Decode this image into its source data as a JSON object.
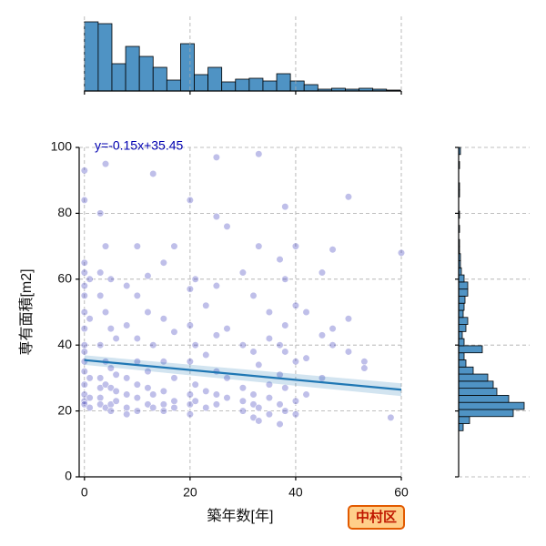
{
  "chart_data": [
    {
      "type": "scatter",
      "xlabel": "築年数[年]",
      "ylabel": "専有面積[m2]",
      "annotation": "y=-0.15x+35.45",
      "badge": "中村区",
      "color": "#1a1ab0",
      "grid": true,
      "xlim": [
        -1,
        60
      ],
      "ylim": [
        0,
        100
      ],
      "xticks": [
        0,
        20,
        40,
        60
      ],
      "yticks": [
        0,
        20,
        40,
        60,
        80,
        100
      ],
      "x": [
        0,
        0,
        0,
        0,
        0,
        0,
        0,
        0,
        0,
        0,
        0,
        0,
        0,
        0,
        0,
        0,
        1,
        1,
        1,
        1,
        1,
        3,
        3,
        3,
        3,
        3,
        3,
        3,
        3,
        4,
        4,
        4,
        4,
        4,
        4,
        5,
        5,
        5,
        5,
        5,
        5,
        6,
        6,
        6,
        6,
        8,
        8,
        8,
        8,
        8,
        8,
        10,
        10,
        10,
        10,
        10,
        10,
        10,
        12,
        12,
        12,
        12,
        12,
        13,
        13,
        13,
        13,
        15,
        15,
        15,
        15,
        15,
        15,
        17,
        17,
        17,
        17,
        17,
        20,
        20,
        20,
        20,
        20,
        20,
        20,
        21,
        21,
        21,
        21,
        23,
        23,
        23,
        23,
        25,
        25,
        25,
        25,
        25,
        25,
        25,
        27,
        27,
        27,
        27,
        30,
        30,
        30,
        30,
        30,
        32,
        32,
        32,
        32,
        32,
        33,
        33,
        33,
        33,
        33,
        35,
        35,
        35,
        35,
        35,
        37,
        37,
        37,
        37,
        37,
        38,
        38,
        38,
        38,
        38,
        38,
        40,
        40,
        40,
        40,
        40,
        42,
        42,
        42,
        45,
        45,
        45,
        47,
        47,
        47,
        50,
        50,
        50,
        53,
        53,
        58,
        60
      ],
      "values": [
        93,
        84,
        65,
        62,
        58,
        55,
        50,
        45,
        40,
        38,
        35,
        32,
        28,
        25,
        23,
        22,
        60,
        48,
        30,
        24,
        21,
        80,
        62,
        55,
        40,
        30,
        27,
        24,
        22,
        95,
        70,
        50,
        35,
        28,
        21,
        60,
        45,
        33,
        27,
        22,
        20,
        42,
        31,
        26,
        23,
        58,
        46,
        30,
        25,
        21,
        19,
        70,
        55,
        42,
        35,
        28,
        24,
        20,
        61,
        50,
        32,
        27,
        22,
        92,
        40,
        25,
        21,
        65,
        48,
        35,
        26,
        22,
        20,
        70,
        44,
        30,
        23,
        21,
        84,
        57,
        46,
        35,
        25,
        22,
        19,
        60,
        40,
        28,
        23,
        52,
        37,
        26,
        21,
        97,
        79,
        58,
        43,
        32,
        25,
        22,
        76,
        45,
        30,
        24,
        62,
        40,
        27,
        23,
        20,
        55,
        38,
        25,
        22,
        18,
        98,
        70,
        34,
        21,
        17,
        50,
        42,
        28,
        24,
        19,
        66,
        40,
        31,
        22,
        16,
        82,
        60,
        46,
        38,
        27,
        20,
        70,
        52,
        35,
        23,
        19,
        50,
        36,
        25,
        62,
        43,
        30,
        69,
        45,
        40,
        85,
        48,
        38,
        35,
        33,
        18,
        68
      ],
      "regression": {
        "color": "#1f77b4",
        "x": [
          0,
          60
        ],
        "values": [
          35.45,
          26.45
        ],
        "ci_lower": [
          34.0,
          24.5
        ],
        "ci_upper": [
          36.9,
          28.4
        ]
      }
    },
    {
      "type": "histogram",
      "orientation": "vertical",
      "color": "#4f93c4",
      "xlim": [
        -1,
        60
      ],
      "xticks": [
        0,
        20,
        40,
        60
      ],
      "ylim": [
        0,
        76
      ],
      "bins": [
        0,
        2.6,
        5.2,
        7.8,
        10.4,
        13,
        15.6,
        18.2,
        20.8,
        23.4,
        26,
        28.6,
        31.2,
        33.8,
        36.4,
        39,
        41.6,
        44.2,
        46.8,
        49.4,
        52,
        54.6,
        57.2,
        59.8
      ],
      "values": [
        76,
        74,
        30,
        49,
        38,
        26,
        12,
        52,
        18,
        26,
        10,
        13,
        14,
        11,
        19,
        11,
        7,
        2,
        3,
        2,
        3,
        2,
        1
      ]
    },
    {
      "type": "histogram",
      "orientation": "horizontal",
      "color": "#4f93c4",
      "ylim": [
        0,
        100
      ],
      "yticks": [
        0,
        20,
        40,
        60,
        80,
        100
      ],
      "xlim": [
        0,
        72
      ],
      "bins": [
        14,
        16.15,
        18.3,
        20.45,
        22.6,
        24.75,
        26.9,
        29.05,
        31.2,
        33.35,
        35.5,
        37.65,
        39.8,
        41.95,
        44.1,
        46.25,
        48.4,
        50.55,
        52.7,
        54.85,
        57,
        59.15,
        61.3,
        63.45,
        65.6,
        67.75,
        69.9,
        72.05,
        74.2,
        76.35,
        78.5,
        80.65,
        82.8,
        84.95,
        87.1,
        89.25,
        91.4,
        93.55,
        95.7,
        97.85,
        100
      ],
      "values": [
        5,
        12,
        60,
        72,
        55,
        42,
        38,
        32,
        16,
        8,
        6,
        26,
        6,
        4,
        8,
        10,
        5,
        6,
        7,
        10,
        10,
        6,
        3,
        2,
        2,
        1,
        1,
        0,
        1,
        0,
        1,
        0,
        0,
        1,
        1,
        0,
        0,
        1,
        0,
        2
      ]
    }
  ]
}
